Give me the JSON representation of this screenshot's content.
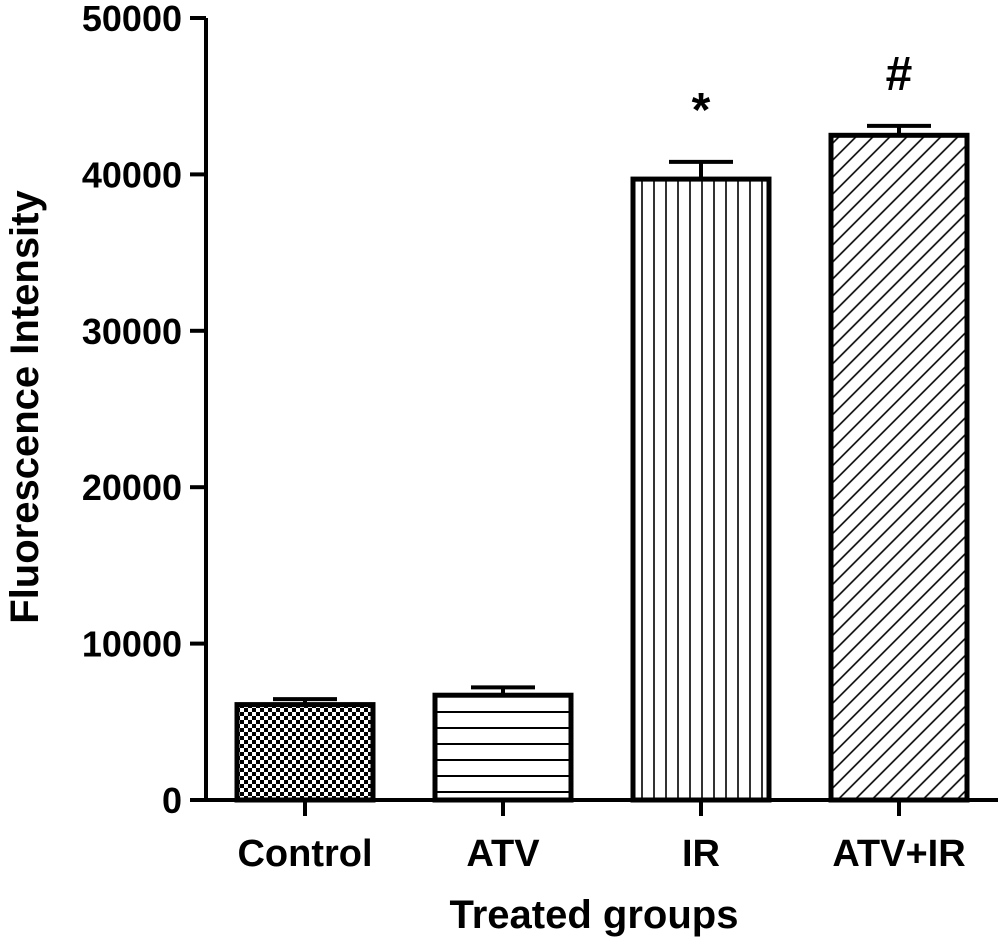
{
  "chart_data": {
    "type": "bar",
    "title": "",
    "xlabel": "Treated groups",
    "ylabel": "Fluorescence Intensity",
    "ylim": [
      0,
      50000
    ],
    "yticks": [
      0,
      10000,
      20000,
      30000,
      40000,
      50000
    ],
    "ytick_labels": [
      "0",
      "10000",
      "20000",
      "30000",
      "40000",
      "50000"
    ],
    "categories": [
      "Control",
      "ATV",
      "IR",
      "ATV+IR"
    ],
    "values": [
      6100,
      6700,
      39700,
      42500
    ],
    "errors": [
      350,
      500,
      1100,
      600
    ],
    "annotations": [
      "",
      "",
      "*",
      "#"
    ],
    "fill_patterns": [
      "checker",
      "horizontal-lines",
      "vertical-lines",
      "diagonal-lines"
    ],
    "colors": {
      "stroke": "#000000",
      "fill": "#ffffff"
    },
    "grid": false,
    "legend": "none"
  }
}
